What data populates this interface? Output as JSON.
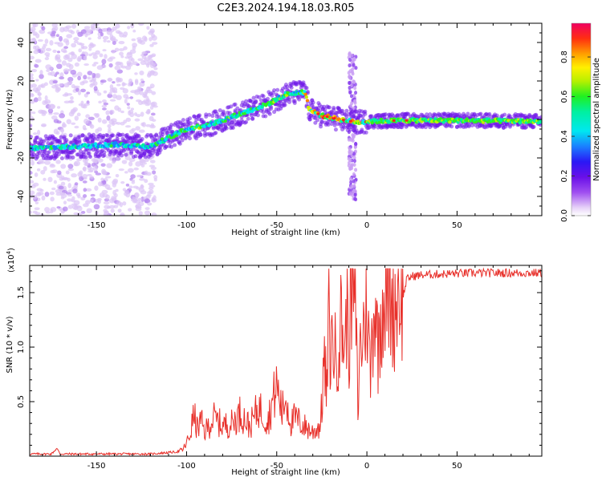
{
  "title": "C2E3.2024.194.18.03.R05",
  "chart_data": [
    {
      "type": "heatmap",
      "xlabel": "Height of straight line (km)",
      "ylabel": "Frequency (Hz)",
      "xlim": [
        -187,
        97
      ],
      "ylim": [
        -50,
        50
      ],
      "xticks": [
        -150,
        -100,
        -50,
        0,
        50
      ],
      "yticks": [
        -40,
        -20,
        0,
        20,
        40
      ],
      "grid": false,
      "colorbar": {
        "label": "Normalized spectral amplitude",
        "range": [
          0,
          0.97
        ],
        "ticks": [
          0.0,
          0.2,
          0.4,
          0.6,
          0.8
        ]
      },
      "ridge": {
        "description_x": [
          -187,
          -160,
          -140,
          -120,
          -100,
          -85,
          -70,
          -55,
          -45,
          -38,
          -34,
          -32,
          -25,
          -15,
          -5,
          0,
          20,
          50,
          97
        ],
        "description_y": [
          -15,
          -14,
          -13,
          -14,
          -5,
          -2,
          3,
          8,
          13,
          14,
          14,
          5,
          2,
          0,
          -1.5,
          -1,
          -0.5,
          -0.5,
          -1
        ]
      }
    },
    {
      "type": "line",
      "xlabel": "Height of straight line (km)",
      "ylabel": "SNR (10 * v/v)",
      "y_multiplier": "(x10",
      "y_multiplier_exp": "4",
      "y_multiplier_close": ")",
      "xlim": [
        -187,
        97
      ],
      "ylim": [
        0,
        1.75
      ],
      "xticks": [
        -150,
        -100,
        -50,
        0,
        50
      ],
      "yticks": [
        0.5,
        1.0,
        1.5
      ],
      "ytick_labels": [
        "0.5",
        "1.0",
        "1.5"
      ],
      "grid": false,
      "color": "#e8302a",
      "series": [
        {
          "x": [
            -187,
            -175,
            -172,
            -170,
            -160,
            -140,
            -120,
            -105,
            -102,
            -100,
            -98,
            -96,
            -94,
            -92,
            -90,
            -85,
            -80,
            -75,
            -70,
            -65,
            -60,
            -55,
            -50,
            -47,
            -45,
            -42,
            -40,
            -35,
            -30,
            -26,
            -25,
            -24,
            -22,
            -21,
            -20,
            -19,
            -18,
            -16,
            -14,
            -12,
            -11,
            -10,
            -8,
            -6,
            -5,
            -4,
            -2,
            0,
            2,
            3,
            5,
            6,
            8,
            10,
            12,
            15,
            18,
            20,
            22,
            25,
            30,
            40,
            60,
            80,
            97
          ],
          "y": [
            0.02,
            0.02,
            0.07,
            0.02,
            0.02,
            0.02,
            0.02,
            0.04,
            0.06,
            0.12,
            0.2,
            0.38,
            0.25,
            0.32,
            0.22,
            0.35,
            0.28,
            0.3,
            0.4,
            0.27,
            0.45,
            0.32,
            0.65,
            0.4,
            0.55,
            0.3,
            0.35,
            0.28,
            0.22,
            0.28,
            0.45,
            0.85,
            0.6,
            1.35,
            0.8,
            1.25,
            0.9,
            1.05,
            1.25,
            0.95,
            1.55,
            1.05,
            1.62,
            1.3,
            0.35,
            0.95,
            1.15,
            1.45,
            0.7,
            1.2,
            1.5,
            0.95,
            1.4,
            1.5,
            1.55,
            1.35,
            1.6,
            1.45,
            1.62,
            1.65,
            1.66,
            1.67,
            1.68,
            1.68,
            1.68
          ]
        }
      ]
    }
  ]
}
